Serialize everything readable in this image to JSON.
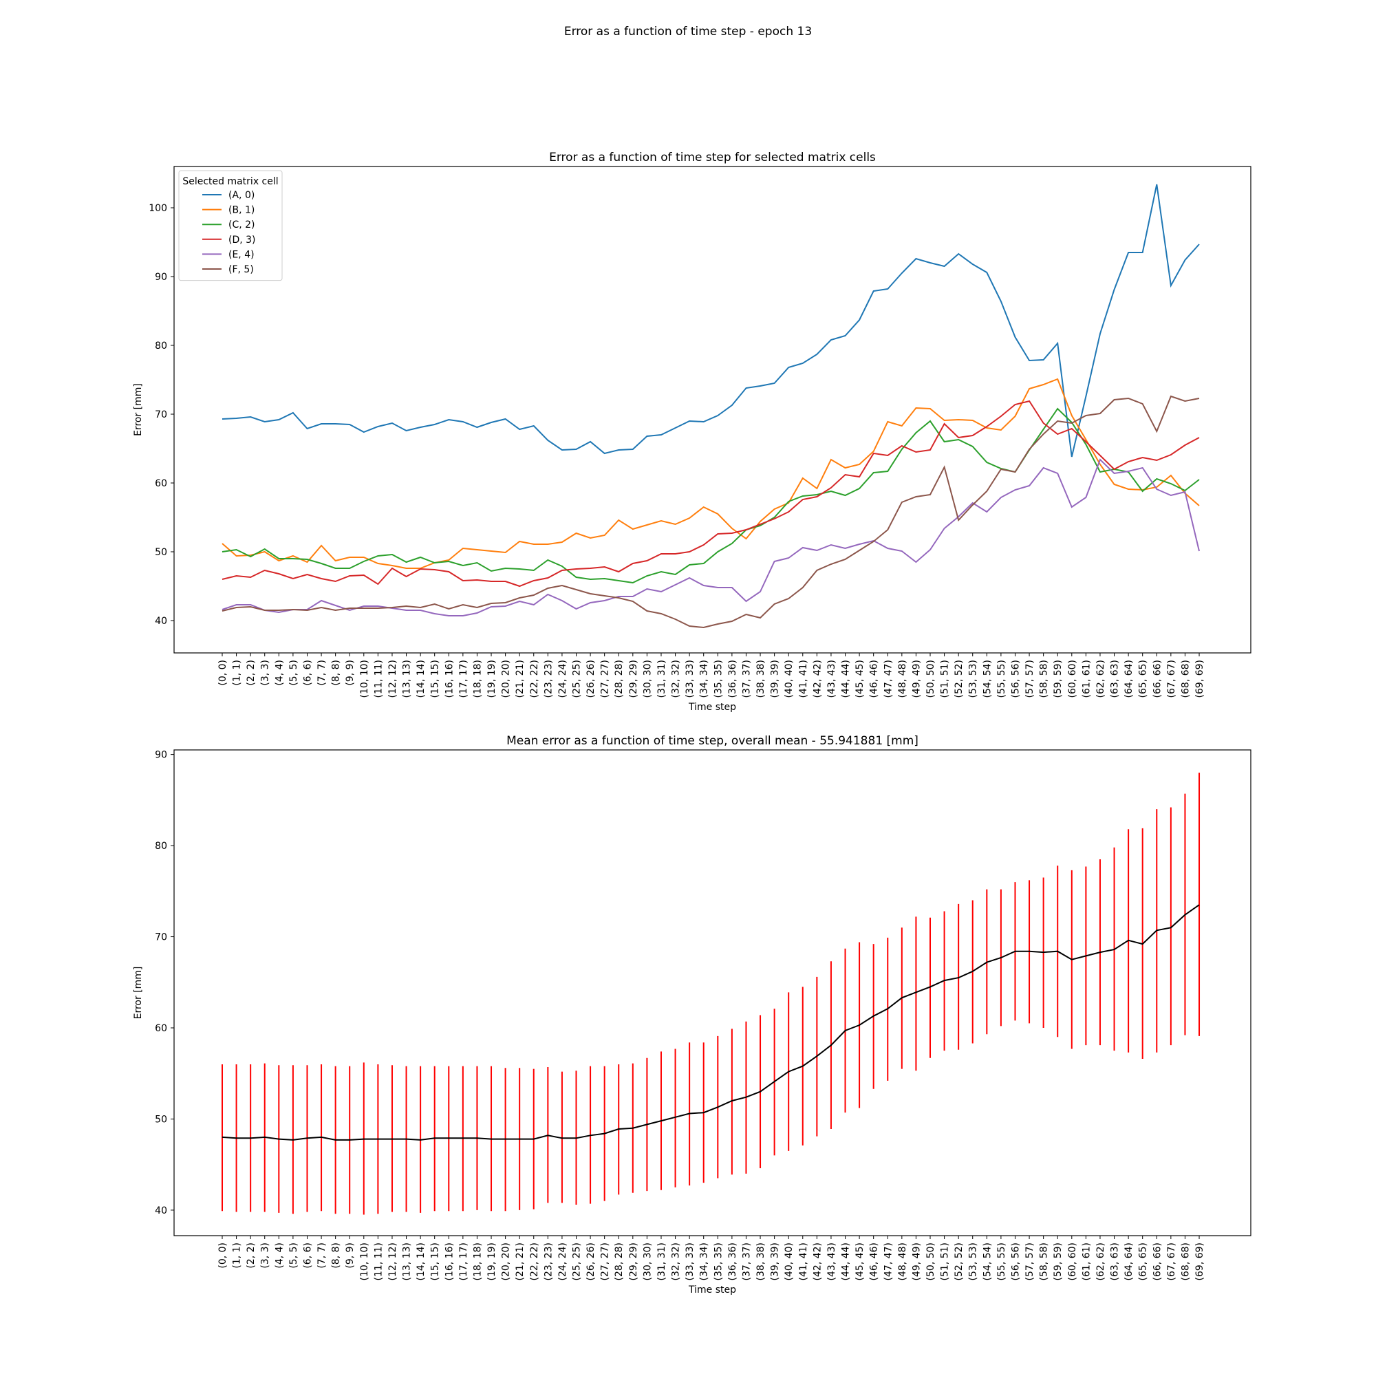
{
  "figure": {
    "suptitle": "Error as a function of time step - epoch 13"
  },
  "chart_data": [
    {
      "type": "line",
      "title": "Error as a function of time step for selected matrix cells",
      "xlabel": "Time step",
      "ylabel": "Error [mm]",
      "ylim": [
        35.3,
        106
      ],
      "yticks": [
        40,
        50,
        60,
        70,
        80,
        90,
        100
      ],
      "grid": false,
      "legend": {
        "title": "Selected matrix cell",
        "placement": "upper-left"
      },
      "categories": [
        "(0, 0)",
        "(1, 1)",
        "(2, 2)",
        "(3, 3)",
        "(4, 4)",
        "(5, 5)",
        "(6, 6)",
        "(7, 7)",
        "(8, 8)",
        "(9, 9)",
        "(10, 10)",
        "(11, 11)",
        "(12, 12)",
        "(13, 13)",
        "(14, 14)",
        "(15, 15)",
        "(16, 16)",
        "(17, 17)",
        "(18, 18)",
        "(19, 19)",
        "(20, 20)",
        "(21, 21)",
        "(22, 22)",
        "(23, 23)",
        "(24, 24)",
        "(25, 25)",
        "(26, 26)",
        "(27, 27)",
        "(28, 28)",
        "(29, 29)",
        "(30, 30)",
        "(31, 31)",
        "(32, 32)",
        "(33, 33)",
        "(34, 34)",
        "(35, 35)",
        "(36, 36)",
        "(37, 37)",
        "(38, 38)",
        "(39, 39)",
        "(40, 40)",
        "(41, 41)",
        "(42, 42)",
        "(43, 43)",
        "(44, 44)",
        "(45, 45)",
        "(46, 46)",
        "(47, 47)",
        "(48, 48)",
        "(49, 49)",
        "(50, 50)",
        "(51, 51)",
        "(52, 52)",
        "(53, 53)",
        "(54, 54)",
        "(55, 55)",
        "(56, 56)",
        "(57, 57)",
        "(58, 58)",
        "(59, 59)",
        "(60, 60)",
        "(61, 61)",
        "(62, 62)",
        "(63, 63)",
        "(64, 64)",
        "(65, 65)",
        "(66, 66)",
        "(67, 67)",
        "(68, 68)",
        "(69, 69)"
      ],
      "series": [
        {
          "name": "(A, 0)",
          "color": "#1f77b4",
          "values": [
            69.3,
            69.4,
            69.6,
            68.9,
            69.2,
            70.2,
            67.9,
            68.6,
            68.6,
            68.5,
            67.4,
            68.2,
            68.7,
            67.6,
            68.1,
            68.5,
            69.2,
            68.9,
            68.1,
            68.8,
            69.3,
            67.8,
            68.3,
            66.2,
            64.8,
            64.9,
            66.0,
            64.3,
            64.8,
            64.9,
            66.8,
            67.0,
            68.0,
            69.0,
            68.9,
            69.8,
            71.3,
            73.8,
            74.1,
            74.5,
            76.8,
            77.4,
            78.7,
            80.8,
            81.4,
            83.7,
            87.9,
            88.2,
            90.5,
            92.6,
            92.0,
            91.5,
            93.3,
            91.8,
            90.6,
            86.4,
            81.2,
            77.8,
            77.9,
            80.3,
            63.8,
            72.6,
            81.7,
            88.1,
            93.5,
            93.5,
            103.4,
            88.7,
            92.4,
            94.7
          ]
        },
        {
          "name": "(B, 1)",
          "color": "#ff7f0e",
          "values": [
            51.2,
            49.4,
            49.5,
            50.0,
            48.7,
            49.4,
            48.5,
            50.9,
            48.7,
            49.2,
            49.2,
            48.3,
            48.0,
            47.6,
            47.6,
            48.4,
            48.8,
            50.5,
            50.3,
            50.1,
            49.9,
            51.5,
            51.1,
            51.1,
            51.4,
            52.7,
            52.0,
            52.4,
            54.6,
            53.3,
            53.9,
            54.5,
            54.0,
            54.9,
            56.5,
            55.5,
            53.4,
            51.9,
            54.4,
            56.2,
            57.1,
            60.7,
            59.2,
            63.4,
            62.2,
            62.7,
            64.6,
            68.9,
            68.3,
            70.9,
            70.8,
            69.1,
            69.2,
            69.1,
            68.0,
            67.7,
            69.7,
            73.7,
            74.3,
            75.1,
            69.8,
            66.3,
            62.7,
            59.8,
            59.1,
            59.0,
            59.4,
            61.1,
            58.5,
            56.7
          ]
        },
        {
          "name": "(C, 2)",
          "color": "#2ca02c",
          "values": [
            50.0,
            50.3,
            49.3,
            50.4,
            49.0,
            49.0,
            48.9,
            48.3,
            47.6,
            47.6,
            48.6,
            49.4,
            49.6,
            48.5,
            49.2,
            48.4,
            48.6,
            48.0,
            48.4,
            47.2,
            47.6,
            47.5,
            47.3,
            48.8,
            47.9,
            46.3,
            46.0,
            46.1,
            45.8,
            45.5,
            46.5,
            47.1,
            46.7,
            48.1,
            48.3,
            50.0,
            51.2,
            53.2,
            53.8,
            55.0,
            57.3,
            58.1,
            58.3,
            58.8,
            58.2,
            59.2,
            61.5,
            61.7,
            64.9,
            67.3,
            69.0,
            66.0,
            66.3,
            65.3,
            63.0,
            62.1,
            61.6,
            64.8,
            67.8,
            70.8,
            68.8,
            65.6,
            61.6,
            62.0,
            61.6,
            58.8,
            60.6,
            59.9,
            58.9,
            60.5
          ]
        },
        {
          "name": "(D, 3)",
          "color": "#d62728",
          "values": [
            46.0,
            46.5,
            46.3,
            47.3,
            46.8,
            46.1,
            46.7,
            46.1,
            45.7,
            46.5,
            46.6,
            45.3,
            47.6,
            46.4,
            47.5,
            47.4,
            47.1,
            45.8,
            45.9,
            45.7,
            45.7,
            45.0,
            45.8,
            46.2,
            47.3,
            47.5,
            47.6,
            47.8,
            47.1,
            48.3,
            48.7,
            49.7,
            49.7,
            50.0,
            51.0,
            52.6,
            52.7,
            53.2,
            54.0,
            54.8,
            55.8,
            57.6,
            58.0,
            59.3,
            61.2,
            60.9,
            64.3,
            64.0,
            65.4,
            64.5,
            64.8,
            68.6,
            66.6,
            66.9,
            68.2,
            69.7,
            71.4,
            71.9,
            68.7,
            67.1,
            67.9,
            66.0,
            64.0,
            62.0,
            63.1,
            63.7,
            63.3,
            64.1,
            65.5,
            66.6
          ]
        },
        {
          "name": "(E, 4)",
          "color": "#9467bd",
          "values": [
            41.6,
            42.3,
            42.3,
            41.5,
            41.2,
            41.6,
            41.6,
            42.9,
            42.2,
            41.5,
            42.1,
            42.1,
            41.8,
            41.5,
            41.5,
            41.0,
            40.7,
            40.7,
            41.1,
            42.0,
            42.1,
            42.8,
            42.3,
            43.8,
            42.9,
            41.7,
            42.6,
            42.9,
            43.5,
            43.5,
            44.6,
            44.2,
            45.2,
            46.2,
            45.1,
            44.8,
            44.8,
            42.8,
            44.2,
            48.6,
            49.1,
            50.6,
            50.2,
            51.0,
            50.5,
            51.1,
            51.6,
            50.5,
            50.1,
            48.5,
            50.3,
            53.4,
            55.1,
            57.1,
            55.8,
            57.9,
            59.0,
            59.6,
            62.2,
            61.4,
            56.5,
            57.9,
            63.4,
            61.4,
            61.7,
            62.2,
            59.1,
            58.2,
            58.7,
            50.1
          ]
        },
        {
          "name": "(F, 5)",
          "color": "#8c564b",
          "values": [
            41.4,
            41.9,
            42.0,
            41.5,
            41.5,
            41.6,
            41.5,
            41.9,
            41.5,
            41.8,
            41.8,
            41.8,
            41.9,
            42.1,
            41.9,
            42.4,
            41.7,
            42.3,
            41.9,
            42.5,
            42.6,
            43.3,
            43.7,
            44.7,
            45.1,
            44.5,
            43.9,
            43.6,
            43.3,
            42.8,
            41.4,
            41.0,
            40.2,
            39.2,
            39.0,
            39.5,
            39.9,
            40.9,
            40.4,
            42.4,
            43.2,
            44.8,
            47.3,
            48.2,
            48.9,
            50.2,
            51.5,
            53.2,
            57.2,
            58.0,
            58.3,
            62.3,
            54.6,
            56.8,
            58.8,
            62.0,
            61.6,
            64.9,
            67.1,
            69.0,
            68.7,
            69.8,
            70.1,
            72.1,
            72.3,
            71.5,
            67.5,
            72.6,
            71.9,
            72.3
          ]
        }
      ]
    },
    {
      "type": "line",
      "title": "Mean error as a function of time step, overall mean - 55.941881 [mm]",
      "xlabel": "Time step",
      "ylabel": "Error [mm]",
      "ylim": [
        37.2,
        90.5
      ],
      "yticks": [
        40,
        50,
        60,
        70,
        80,
        90
      ],
      "grid": false,
      "mean_color": "#000000",
      "errorbar_color": "#ff0000",
      "categories": [
        "(0, 0)",
        "(1, 1)",
        "(2, 2)",
        "(3, 3)",
        "(4, 4)",
        "(5, 5)",
        "(6, 6)",
        "(7, 7)",
        "(8, 8)",
        "(9, 9)",
        "(10, 10)",
        "(11, 11)",
        "(12, 12)",
        "(13, 13)",
        "(14, 14)",
        "(15, 15)",
        "(16, 16)",
        "(17, 17)",
        "(18, 18)",
        "(19, 19)",
        "(20, 20)",
        "(21, 21)",
        "(22, 22)",
        "(23, 23)",
        "(24, 24)",
        "(25, 25)",
        "(26, 26)",
        "(27, 27)",
        "(28, 28)",
        "(29, 29)",
        "(30, 30)",
        "(31, 31)",
        "(32, 32)",
        "(33, 33)",
        "(34, 34)",
        "(35, 35)",
        "(36, 36)",
        "(37, 37)",
        "(38, 38)",
        "(39, 39)",
        "(40, 40)",
        "(41, 41)",
        "(42, 42)",
        "(43, 43)",
        "(44, 44)",
        "(45, 45)",
        "(46, 46)",
        "(47, 47)",
        "(48, 48)",
        "(49, 49)",
        "(50, 50)",
        "(51, 51)",
        "(52, 52)",
        "(53, 53)",
        "(54, 54)",
        "(55, 55)",
        "(56, 56)",
        "(57, 57)",
        "(58, 58)",
        "(59, 59)",
        "(60, 60)",
        "(61, 61)",
        "(62, 62)",
        "(63, 63)",
        "(64, 64)",
        "(65, 65)",
        "(66, 66)",
        "(67, 67)",
        "(68, 68)",
        "(69, 69)"
      ],
      "mean": [
        48.0,
        47.9,
        47.9,
        48.0,
        47.8,
        47.7,
        47.9,
        48.0,
        47.7,
        47.7,
        47.8,
        47.8,
        47.8,
        47.8,
        47.7,
        47.9,
        47.9,
        47.9,
        47.9,
        47.8,
        47.8,
        47.8,
        47.8,
        48.2,
        47.9,
        47.9,
        48.2,
        48.4,
        48.9,
        49.0,
        49.4,
        49.8,
        50.2,
        50.6,
        50.7,
        51.3,
        52.0,
        52.4,
        53.0,
        54.1,
        55.2,
        55.8,
        56.9,
        58.1,
        59.7,
        60.3,
        61.3,
        62.1,
        63.3,
        63.9,
        64.5,
        65.2,
        65.5,
        66.2,
        67.2,
        67.7,
        68.4,
        68.4,
        68.3,
        68.4,
        67.5,
        67.9,
        68.3,
        68.6,
        69.6,
        69.2,
        70.7,
        71.0,
        72.4,
        73.5
      ],
      "upper": [
        56.0,
        56.0,
        56.0,
        56.1,
        55.9,
        55.9,
        55.9,
        56.0,
        55.8,
        55.8,
        56.2,
        56.0,
        55.9,
        55.8,
        55.8,
        55.8,
        55.8,
        55.8,
        55.8,
        55.8,
        55.6,
        55.6,
        55.5,
        55.7,
        55.2,
        55.3,
        55.8,
        55.8,
        56.0,
        56.1,
        56.7,
        57.4,
        57.7,
        58.4,
        58.4,
        59.1,
        59.9,
        60.7,
        61.4,
        62.1,
        63.9,
        64.5,
        65.6,
        67.3,
        68.7,
        69.4,
        69.2,
        69.9,
        71.0,
        72.2,
        72.1,
        72.8,
        73.6,
        74.0,
        75.2,
        75.2,
        76.0,
        76.2,
        76.5,
        77.8,
        77.3,
        77.7,
        78.5,
        79.8,
        81.8,
        81.9,
        84.0,
        84.2,
        85.7,
        88.0
      ],
      "lower": [
        39.9,
        39.8,
        39.8,
        39.8,
        39.7,
        39.6,
        39.8,
        39.9,
        39.6,
        39.6,
        39.5,
        39.6,
        39.8,
        39.8,
        39.7,
        39.9,
        39.9,
        39.9,
        40.0,
        39.9,
        39.9,
        40.0,
        40.1,
        40.8,
        40.8,
        40.6,
        40.7,
        41.0,
        41.7,
        41.9,
        42.1,
        42.2,
        42.5,
        42.7,
        43.0,
        43.5,
        43.9,
        44.0,
        44.6,
        46.0,
        46.5,
        47.1,
        48.1,
        48.9,
        50.7,
        51.2,
        53.3,
        54.2,
        55.5,
        55.3,
        56.7,
        57.5,
        57.6,
        58.3,
        59.3,
        60.2,
        60.8,
        60.5,
        60.0,
        59.0,
        57.7,
        58.1,
        58.1,
        57.5,
        57.3,
        56.6,
        57.3,
        58.1,
        59.2,
        59.1
      ]
    }
  ]
}
